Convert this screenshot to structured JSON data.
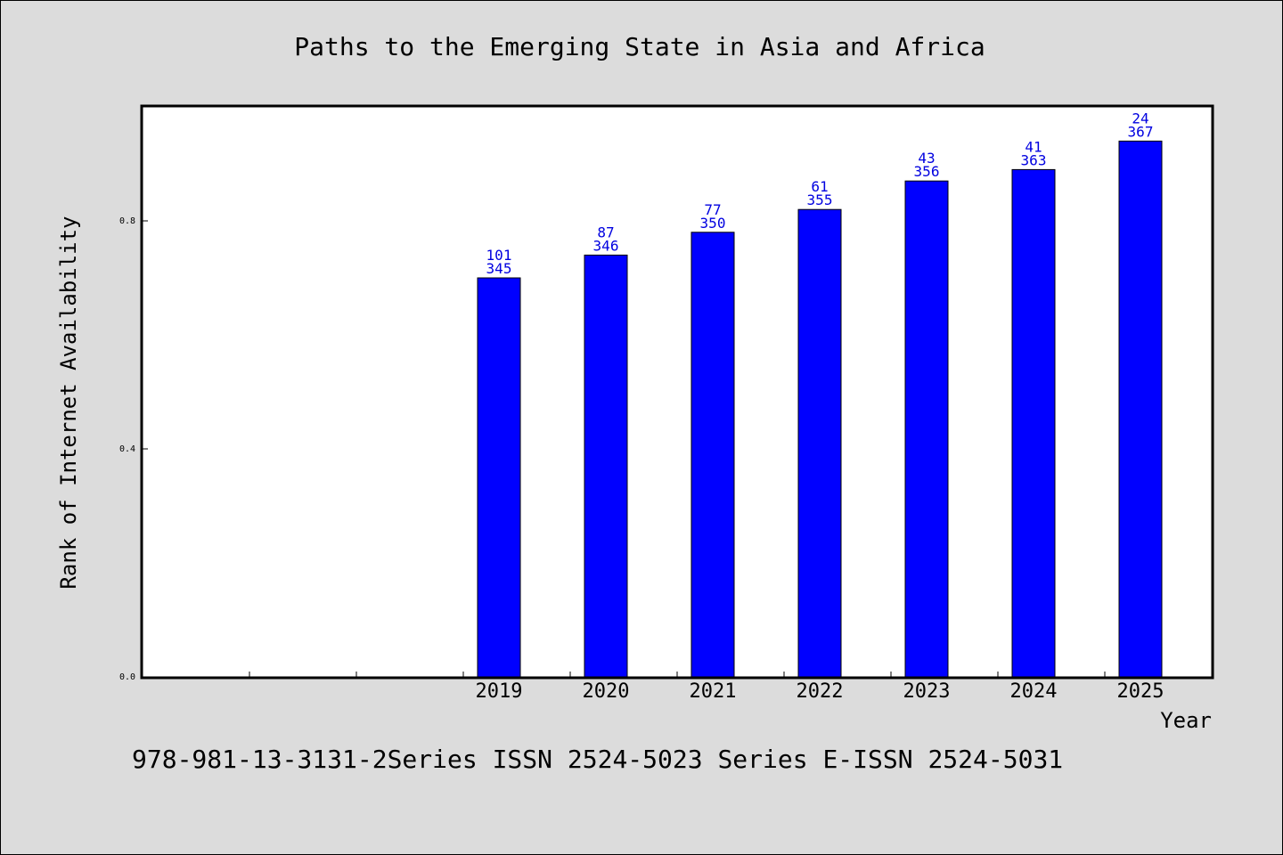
{
  "chart_data": {
    "type": "bar",
    "title": "Paths to the Emerging State in Asia and Africa",
    "xlabel": "Year",
    "ylabel": "Rank of Internet Availability",
    "categories": [
      "2019",
      "2020",
      "2021",
      "2022",
      "2023",
      "2024",
      "2025"
    ],
    "x_slots_before_data": 3,
    "values": [
      0.7,
      0.74,
      0.78,
      0.82,
      0.87,
      0.89,
      0.94
    ],
    "label_top": [
      "101",
      "87",
      "77",
      "61",
      "43",
      "41",
      "24"
    ],
    "label_bottom": [
      "345",
      "346",
      "350",
      "355",
      "356",
      "363",
      "367"
    ],
    "yticks": [
      {
        "value": 0.0,
        "label": "0.0"
      },
      {
        "value": 0.4,
        "label": "0.4"
      },
      {
        "value": 0.8,
        "label": "0.8"
      }
    ],
    "ylim": [
      0,
      1.0
    ],
    "bar_color": "#0000ff",
    "label_color": "#0000e0",
    "grid": false,
    "legend": "none"
  },
  "footer_text": "978-981-13-3131-2Series ISSN 2524-5023 Series E-ISSN 2524-5031"
}
